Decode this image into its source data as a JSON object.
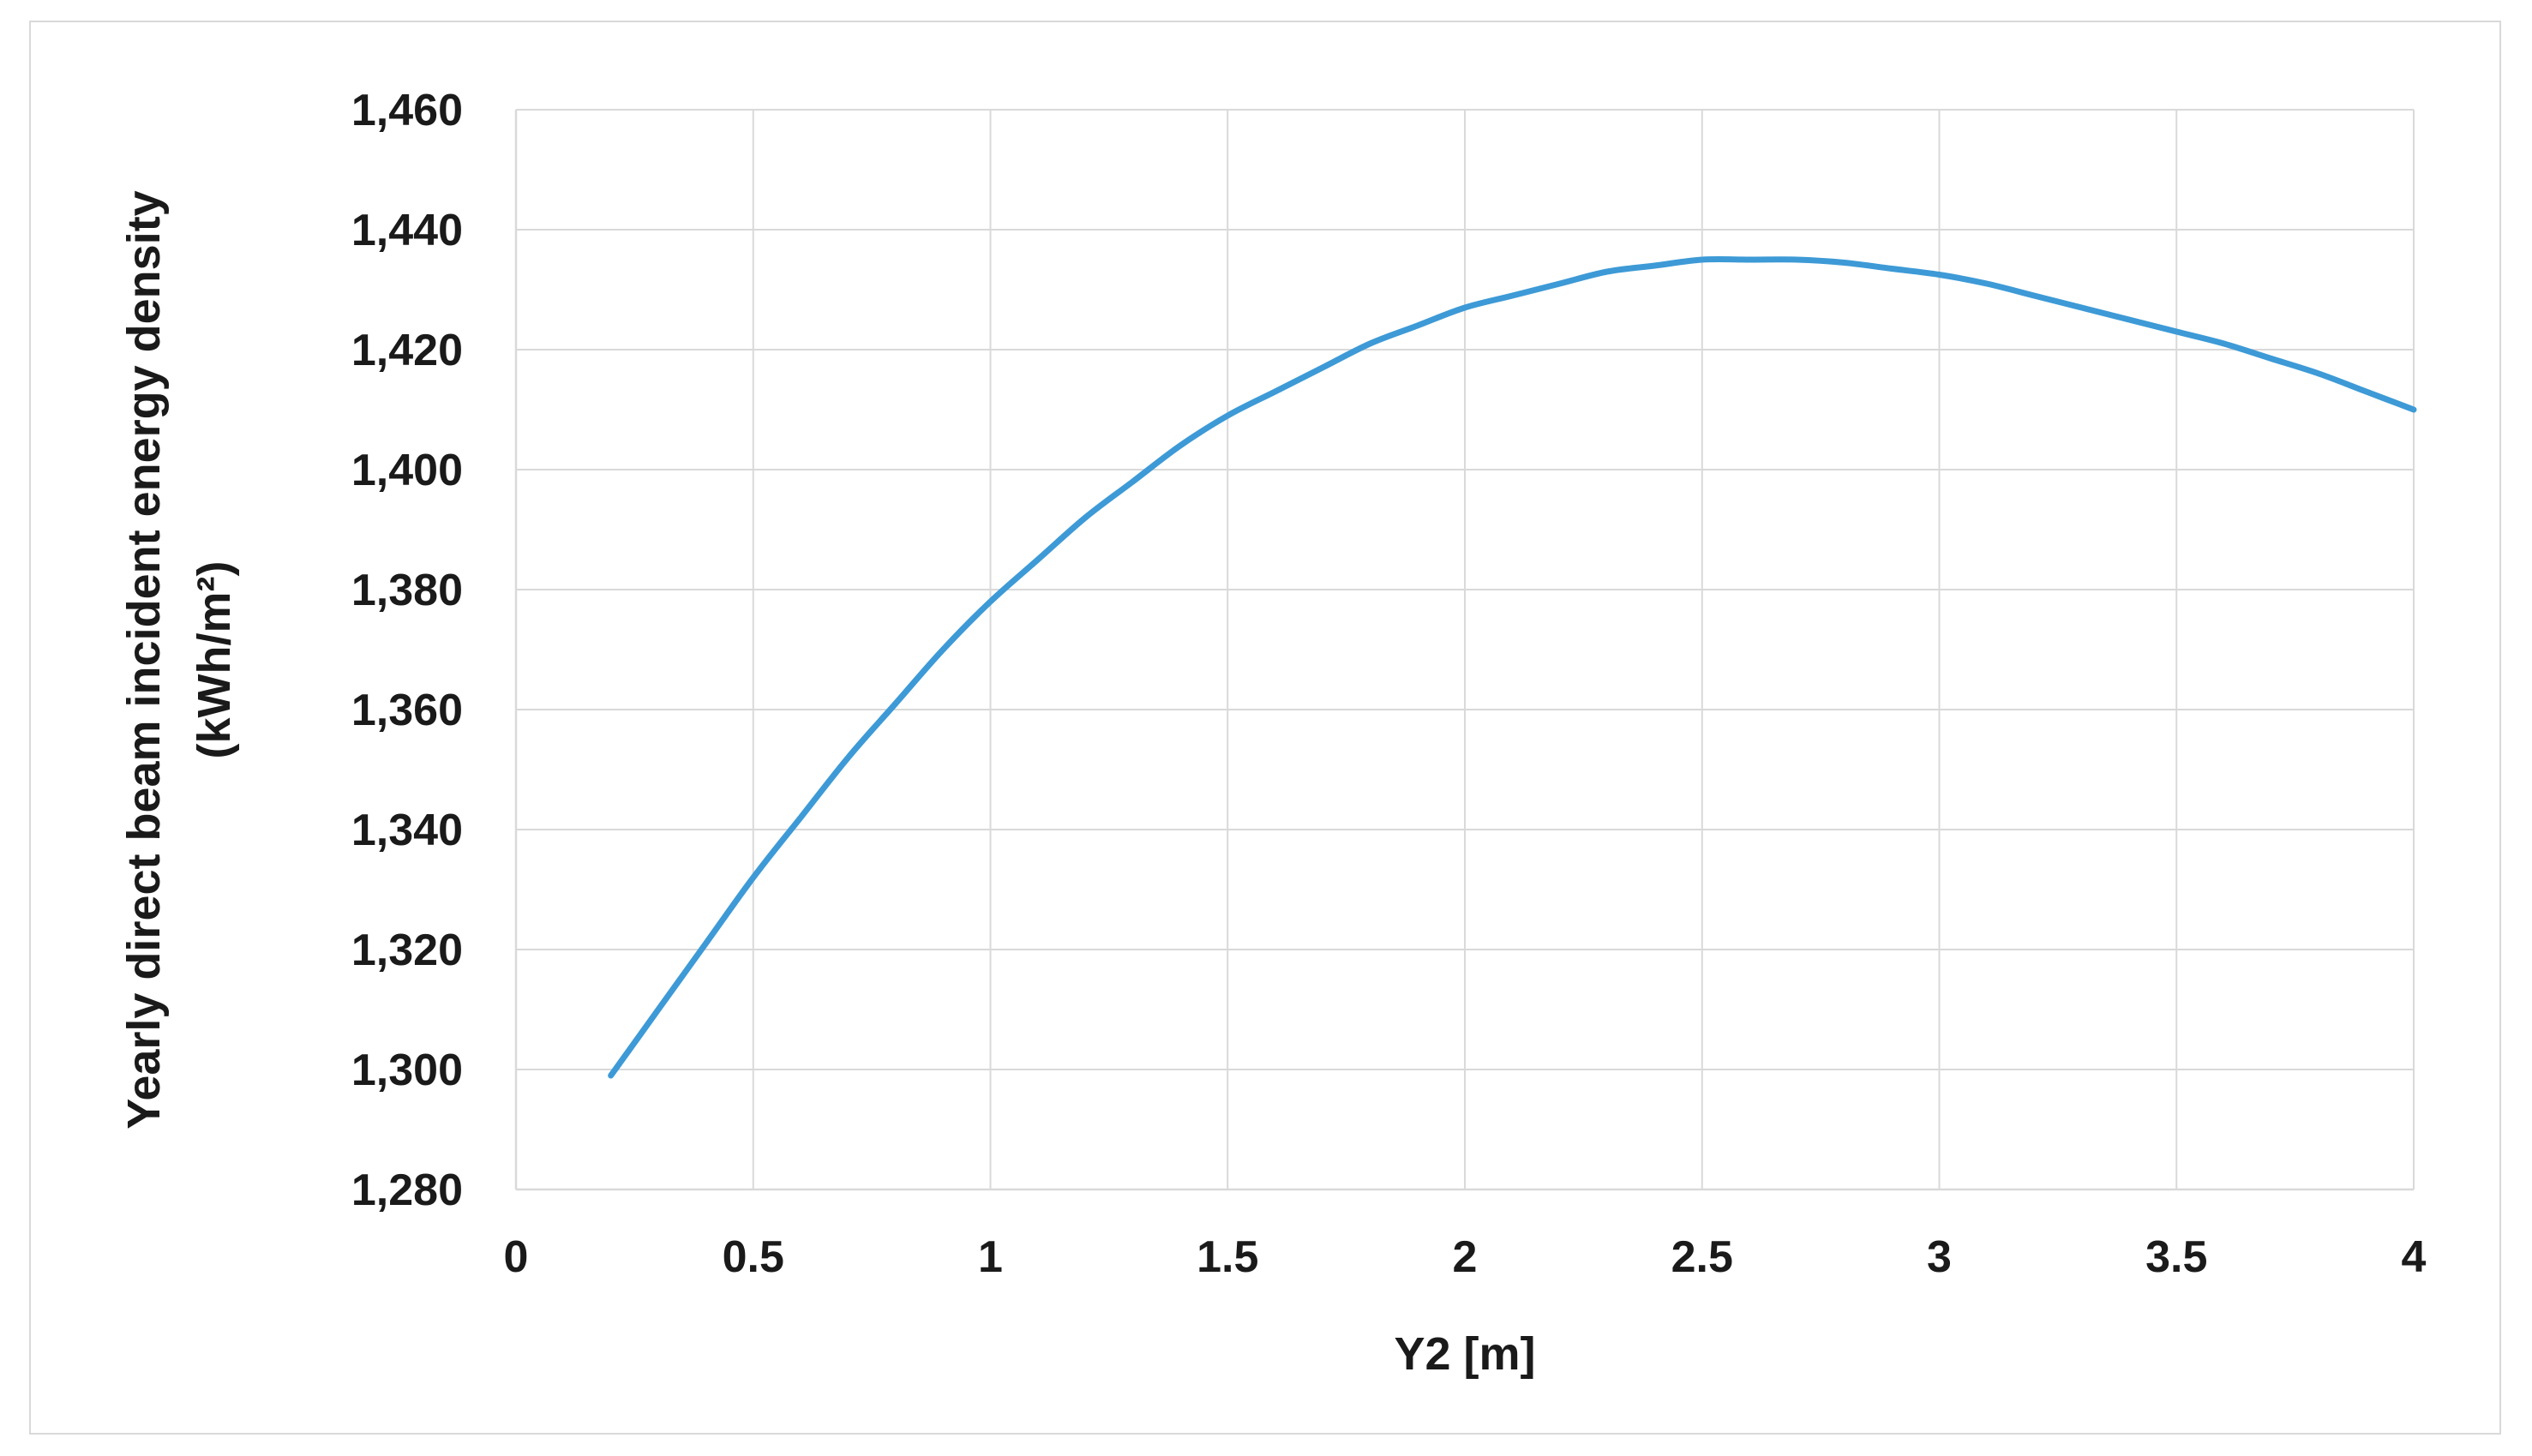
{
  "chart_data": {
    "type": "line",
    "title": "",
    "xlabel": "Y2 [m]",
    "ylabel_line1": "Yearly direct beam incident energy density",
    "ylabel_line2": "(kWh/m²)",
    "xlim": [
      0,
      4
    ],
    "ylim": [
      1280,
      1460
    ],
    "x_ticks": [
      0,
      0.5,
      1,
      1.5,
      2,
      2.5,
      3,
      3.5,
      4
    ],
    "x_tick_labels": [
      "0",
      "0.5",
      "1",
      "1.5",
      "2",
      "2.5",
      "3",
      "3.5",
      "4"
    ],
    "y_ticks": [
      1280,
      1300,
      1320,
      1340,
      1360,
      1380,
      1400,
      1420,
      1440,
      1460
    ],
    "y_tick_labels": [
      "1,280",
      "1,300",
      "1,320",
      "1,340",
      "1,360",
      "1,380",
      "1,400",
      "1,420",
      "1,440",
      "1,460"
    ],
    "grid": true,
    "legend": "none",
    "series_color": "#3d9ad6",
    "series": [
      {
        "x": [
          0.2,
          0.3,
          0.4,
          0.5,
          0.6,
          0.7,
          0.8,
          0.9,
          1.0,
          1.1,
          1.2,
          1.3,
          1.4,
          1.5,
          1.6,
          1.7,
          1.8,
          1.9,
          2.0,
          2.1,
          2.2,
          2.3,
          2.4,
          2.5,
          2.6,
          2.7,
          2.8,
          2.9,
          3.0,
          3.1,
          3.2,
          3.3,
          3.4,
          3.5,
          3.6,
          3.7,
          3.8,
          3.9,
          4.0
        ],
        "values": [
          1299,
          1310,
          1321,
          1332,
          1342,
          1352,
          1361,
          1370,
          1378,
          1385,
          1392,
          1398,
          1404,
          1409,
          1413,
          1417,
          1421,
          1424,
          1427,
          1429,
          1431,
          1433,
          1434,
          1435,
          1435,
          1435,
          1434.5,
          1433.5,
          1432.5,
          1431,
          1429,
          1427,
          1425,
          1423,
          1421,
          1418.5,
          1416,
          1413,
          1410
        ]
      }
    ]
  }
}
